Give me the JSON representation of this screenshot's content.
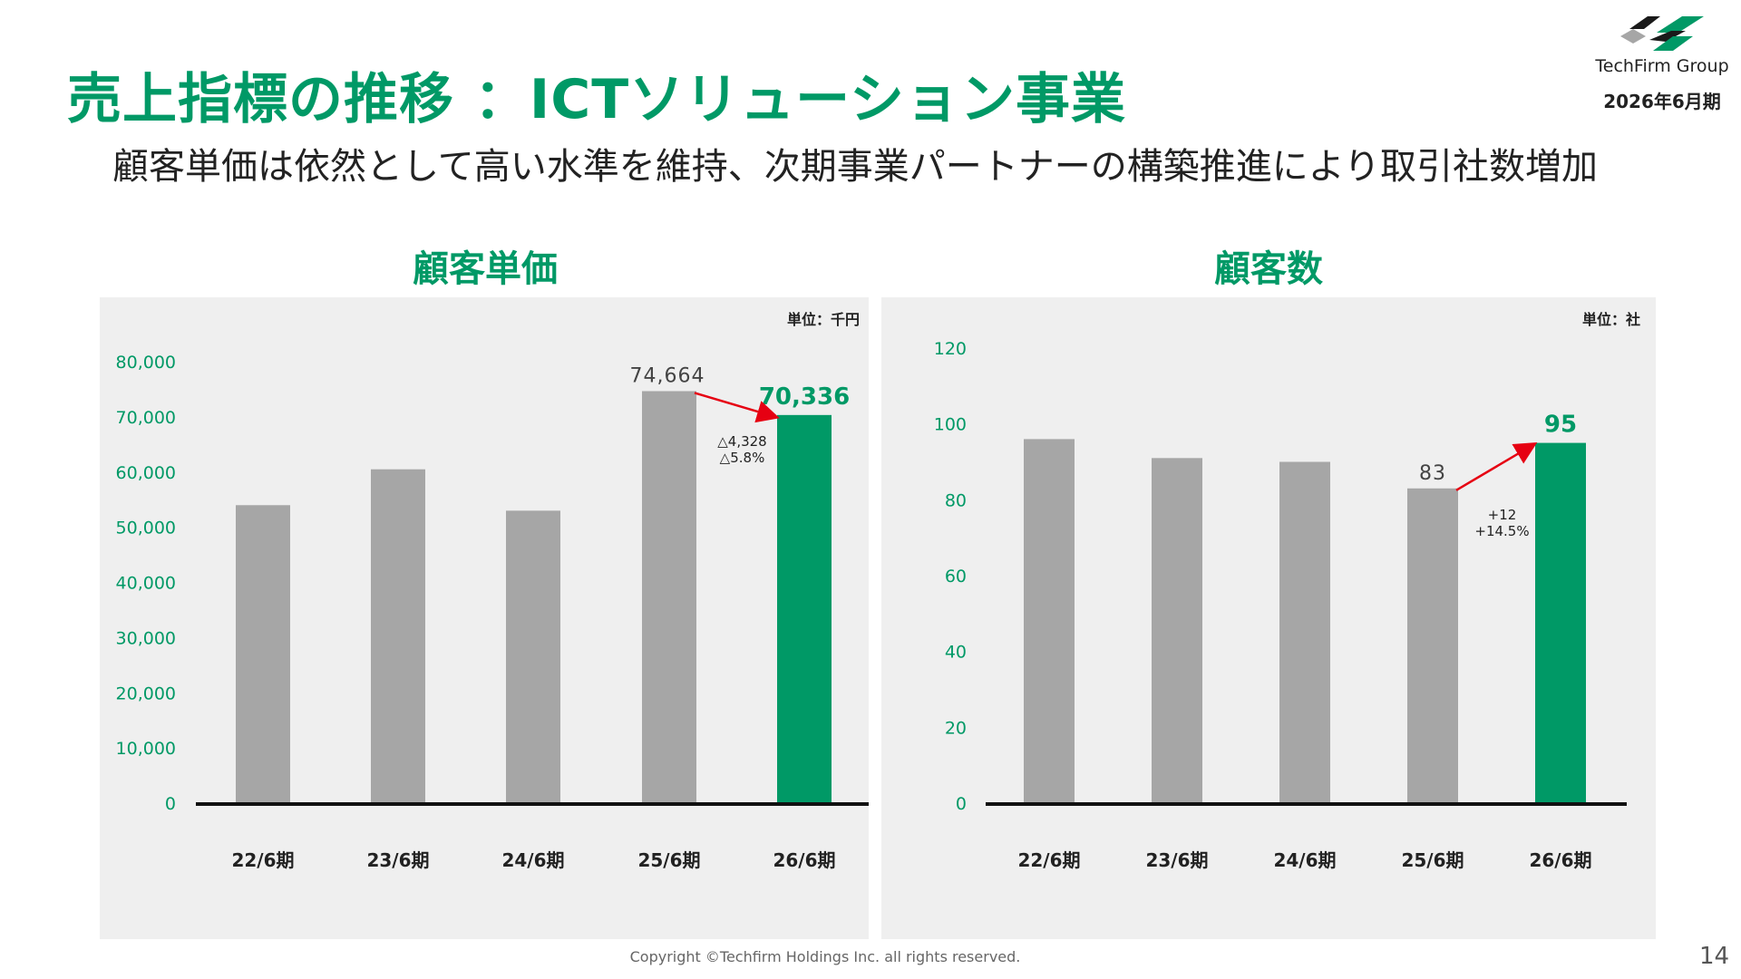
{
  "header": {
    "title": "売上指標の推移 ：ICTソリューション事業",
    "subtitle": "顧客単価は依然として高い水準を維持、次期事業パートナーの構築推進により取引社数増加",
    "logo_text": "TechFirm Group",
    "fiscal_period": "2026年6月期"
  },
  "colors": {
    "accent": "#009966",
    "bar_grey": "#a6a6a6",
    "arrow": "#e60012",
    "panel_bg": "#efefef"
  },
  "footer": {
    "copyright": "Copyright ©Techfirm Holdings Inc. all rights reserved.",
    "page_number": "14"
  },
  "chart_data": [
    {
      "type": "bar",
      "title": "顧客単価",
      "unit_label": "単位：千円",
      "categories": [
        "22/6期",
        "23/6期",
        "24/6期",
        "25/6期",
        "26/6期"
      ],
      "values": [
        54000,
        60500,
        53000,
        74664,
        70336
      ],
      "highlight_index": 4,
      "ylim": [
        0,
        80000
      ],
      "yticks": [
        0,
        10000,
        20000,
        30000,
        40000,
        50000,
        60000,
        70000,
        80000
      ],
      "ytick_labels": [
        "0",
        "10,000",
        "20,000",
        "30,000",
        "40,000",
        "50,000",
        "60,000",
        "70,000",
        "80,000"
      ],
      "data_labels": [
        {
          "index": 3,
          "text": "74,664"
        },
        {
          "index": 4,
          "text": "70,336"
        }
      ],
      "change_annotation": [
        "△4,328",
        "△5.8%"
      ],
      "grid": false
    },
    {
      "type": "bar",
      "title": "顧客数",
      "unit_label": "単位：社",
      "categories": [
        "22/6期",
        "23/6期",
        "24/6期",
        "25/6期",
        "26/6期"
      ],
      "values": [
        96,
        91,
        90,
        83,
        95
      ],
      "highlight_index": 4,
      "ylim": [
        0,
        120
      ],
      "yticks": [
        0,
        20,
        40,
        60,
        80,
        100,
        120
      ],
      "ytick_labels": [
        "0",
        "20",
        "40",
        "60",
        "80",
        "100",
        "120"
      ],
      "data_labels": [
        {
          "index": 3,
          "text": "83"
        },
        {
          "index": 4,
          "text": "95"
        }
      ],
      "change_annotation": [
        "+12",
        "+14.5%"
      ],
      "grid": false
    }
  ]
}
